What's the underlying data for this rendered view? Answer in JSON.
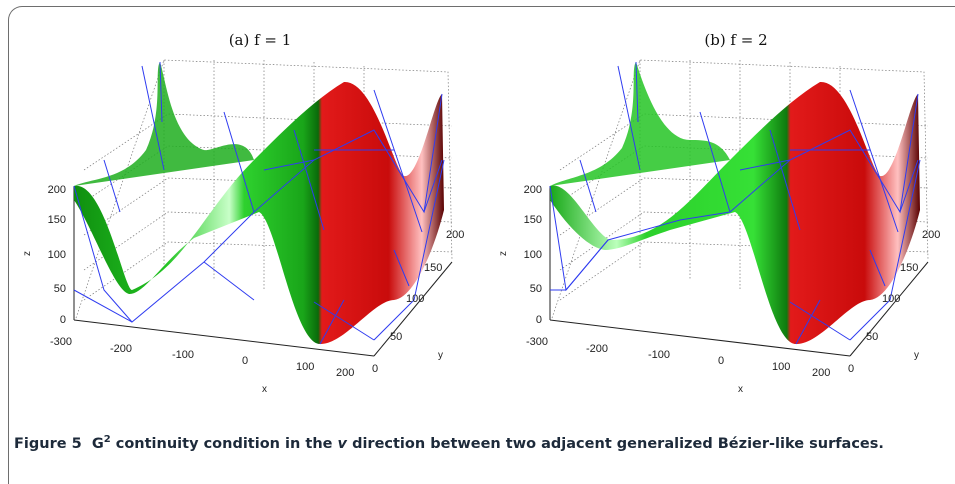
{
  "figure": {
    "panels": [
      {
        "title": "(a) f = 1",
        "xlabel": "x",
        "ylabel": "y",
        "zlabel": "z",
        "x_ticks": [
          "-300",
          "-200",
          "-100",
          "0",
          "100",
          "200"
        ],
        "y_ticks": [
          "0",
          "50",
          "100",
          "150",
          "200"
        ],
        "z_ticks": [
          "0",
          "50",
          "100",
          "150",
          "200"
        ]
      },
      {
        "title": "(b) f = 2",
        "xlabel": "x",
        "ylabel": "y",
        "zlabel": "z",
        "x_ticks": [
          "-300",
          "-200",
          "-100",
          "0",
          "100",
          "200"
        ],
        "y_ticks": [
          "0",
          "50",
          "100",
          "150",
          "200"
        ],
        "z_ticks": [
          "0",
          "50",
          "100",
          "150",
          "200"
        ]
      }
    ],
    "caption": {
      "label": "Figure 5",
      "g": "G",
      "sup": "2",
      "text_before_v": "continuity condition in the",
      "v": "v",
      "text_after_v": "direction between two adjacent generalized Bézier-like surfaces."
    },
    "colors": {
      "left_surface": "#22cc22",
      "right_surface": "#dd1111",
      "control_net": "#2233ee"
    }
  }
}
